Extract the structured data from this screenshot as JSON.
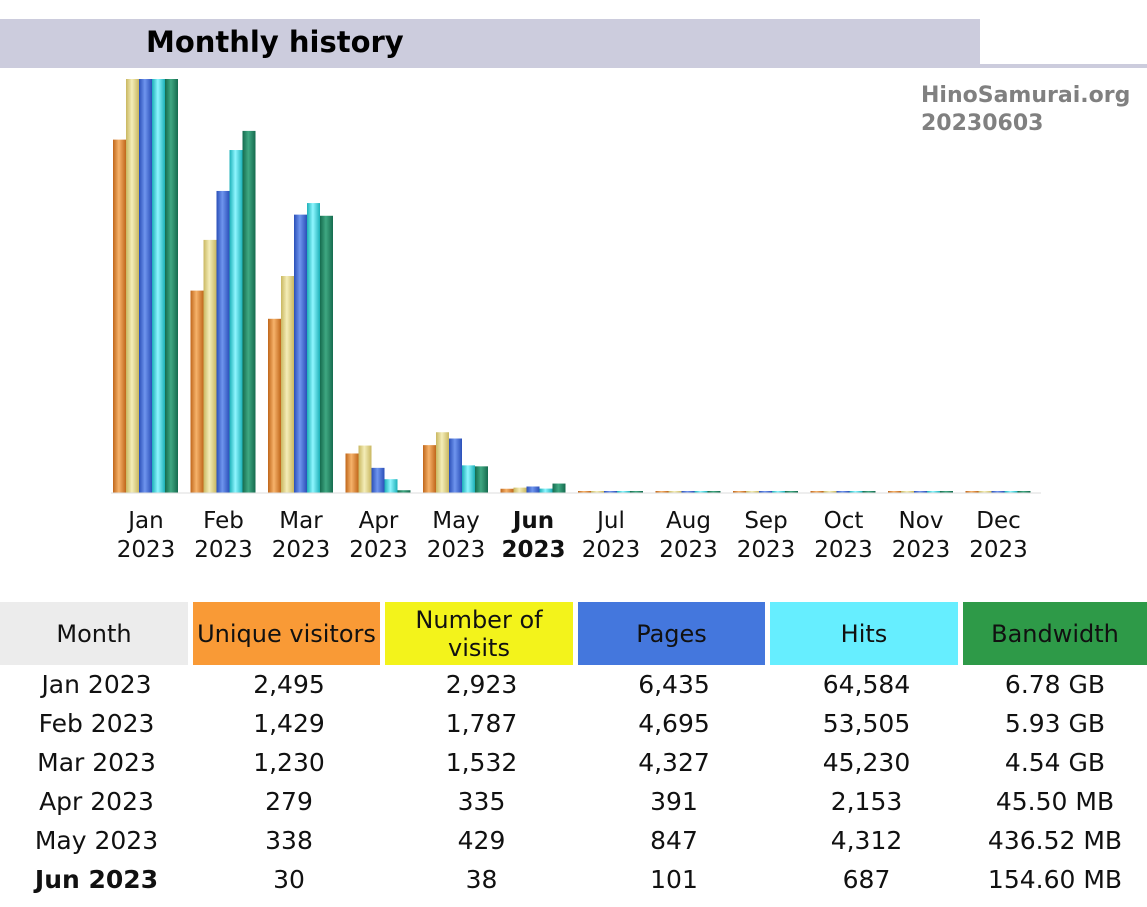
{
  "header": {
    "title": "Monthly history"
  },
  "site": {
    "name": "HinoSamurai.org",
    "date": "20230603"
  },
  "colors": {
    "unique_visitors": "#f99a36",
    "visits": "#f3f31b",
    "pages": "#4477dd",
    "hits": "#66eeff",
    "bandwidth": "#2e9a48",
    "header_band": "#ccccdd"
  },
  "chart_data": {
    "type": "bar",
    "categories": [
      "Jan 2023",
      "Feb 2023",
      "Mar 2023",
      "Apr 2023",
      "May 2023",
      "Jun 2023",
      "Jul 2023",
      "Aug 2023",
      "Sep 2023",
      "Oct 2023",
      "Nov 2023",
      "Dec 2023"
    ],
    "current_category": "Jun 2023",
    "series": [
      {
        "name": "Unique visitors",
        "values": [
          2495,
          1429,
          1230,
          279,
          338,
          30,
          0,
          0,
          0,
          0,
          0,
          0
        ]
      },
      {
        "name": "Number of visits",
        "values": [
          2923,
          1787,
          1532,
          335,
          429,
          38,
          0,
          0,
          0,
          0,
          0,
          0
        ]
      },
      {
        "name": "Pages",
        "values": [
          6435,
          4695,
          4327,
          391,
          847,
          101,
          0,
          0,
          0,
          0,
          0,
          0
        ]
      },
      {
        "name": "Hits",
        "values": [
          64584,
          53505,
          45230,
          2153,
          4312,
          687,
          0,
          0,
          0,
          0,
          0,
          0
        ]
      },
      {
        "name": "Bandwidth",
        "values": [
          6.78,
          5.93,
          4.54,
          0.0455,
          0.43652,
          0.1546,
          0,
          0,
          0,
          0,
          0,
          0
        ]
      }
    ],
    "bandwidth_unit": "GB"
  },
  "table": {
    "headers": {
      "month": "Month",
      "unique_visitors": "Unique visitors",
      "visits": "Number of visits",
      "pages": "Pages",
      "hits": "Hits",
      "bandwidth": "Bandwidth"
    },
    "rows": [
      {
        "month": "Jan 2023",
        "unique_visitors": "2,495",
        "visits": "2,923",
        "pages": "6,435",
        "hits": "64,584",
        "bandwidth": "6.78 GB"
      },
      {
        "month": "Feb 2023",
        "unique_visitors": "1,429",
        "visits": "1,787",
        "pages": "4,695",
        "hits": "53,505",
        "bandwidth": "5.93 GB"
      },
      {
        "month": "Mar 2023",
        "unique_visitors": "1,230",
        "visits": "1,532",
        "pages": "4,327",
        "hits": "45,230",
        "bandwidth": "4.54 GB"
      },
      {
        "month": "Apr 2023",
        "unique_visitors": "279",
        "visits": "335",
        "pages": "391",
        "hits": "2,153",
        "bandwidth": "45.50 MB"
      },
      {
        "month": "May 2023",
        "unique_visitors": "338",
        "visits": "429",
        "pages": "847",
        "hits": "4,312",
        "bandwidth": "436.52 MB"
      },
      {
        "month": "Jun 2023",
        "unique_visitors": "30",
        "visits": "38",
        "pages": "101",
        "hits": "687",
        "bandwidth": "154.60 MB"
      }
    ]
  }
}
